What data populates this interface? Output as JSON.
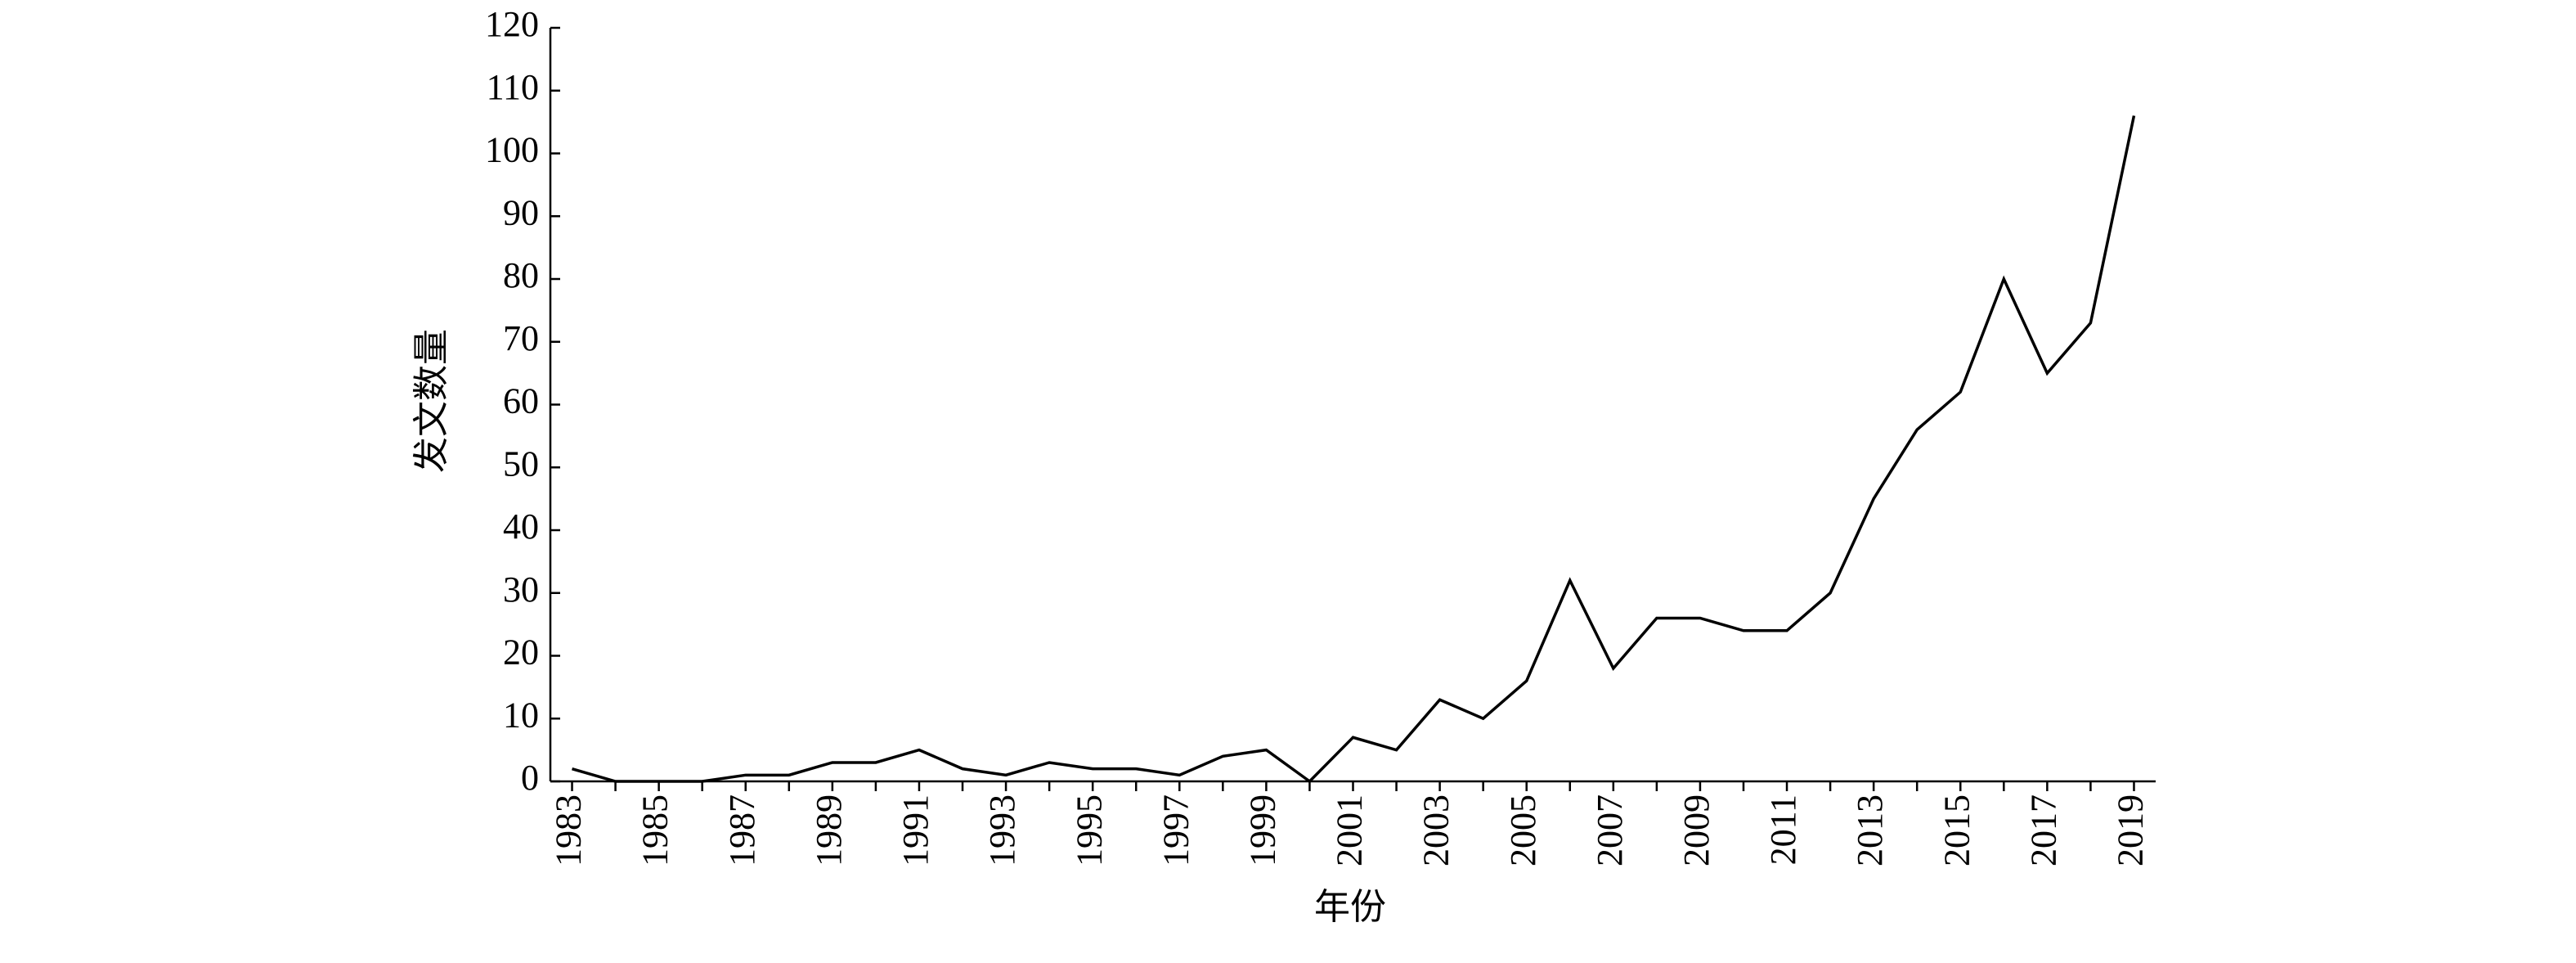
{
  "chart_data": {
    "type": "line",
    "x_label": "年份",
    "y_label": "发文数量",
    "x": [
      1983,
      1984,
      1985,
      1986,
      1987,
      1988,
      1989,
      1990,
      1991,
      1992,
      1993,
      1994,
      1995,
      1996,
      1997,
      1998,
      1999,
      2000,
      2001,
      2002,
      2003,
      2004,
      2005,
      2006,
      2007,
      2008,
      2009,
      2010,
      2011,
      2012,
      2013,
      2014,
      2015,
      2016,
      2017,
      2018,
      2019
    ],
    "series": [
      {
        "color": "#000000",
        "values": [
          2,
          0,
          0,
          0,
          1,
          1,
          3,
          3,
          5,
          2,
          1,
          3,
          2,
          2,
          1,
          4,
          5,
          0,
          7,
          5,
          13,
          10,
          16,
          32,
          18,
          26,
          26,
          24,
          24,
          30,
          45,
          56,
          62,
          80,
          65,
          73,
          106
        ]
      }
    ],
    "xlim": [
      1982.5,
      2019.5
    ],
    "xticks": [
      1983,
      1985,
      1987,
      1989,
      1991,
      1993,
      1995,
      1997,
      1999,
      2001,
      2003,
      2005,
      2007,
      2009,
      2011,
      2013,
      2015,
      2017,
      2019
    ],
    "ylim": [
      0,
      120
    ],
    "yticks": [
      0,
      10,
      20,
      30,
      40,
      50,
      60,
      70,
      80,
      90,
      100,
      110,
      120
    ]
  }
}
